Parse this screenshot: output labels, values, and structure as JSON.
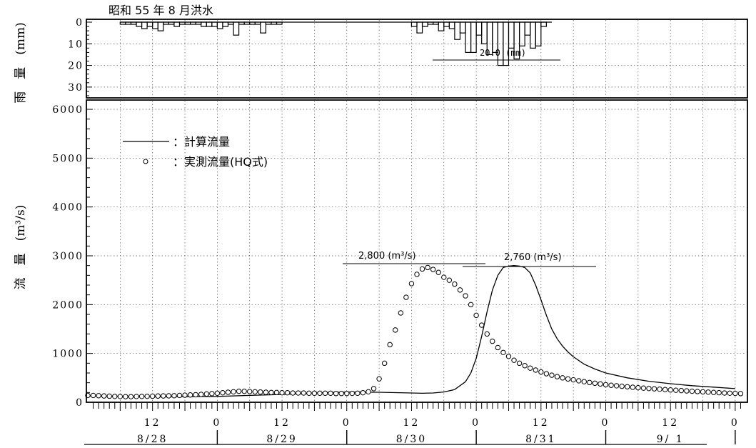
{
  "title": "昭和 55 年 8 月洪水",
  "rain_axis_label": "雨　量　(mm)",
  "flow_axis_label": "流　量　(m³/s)",
  "legend": {
    "computed": "：計算流量",
    "observed": "：実測流量(HQ式)"
  },
  "annotations": {
    "rain_peak": "20.0 (mm)",
    "computed_peak": "2,800 (m³/s)",
    "observed_peak": "2,760 (m³/s)"
  },
  "colors": {
    "ink": "#000000",
    "grid": "#555555",
    "background": "#ffffff"
  },
  "chart_data": {
    "type": "line",
    "title": "昭和 55 年 8 月洪水",
    "x_unit": "hours",
    "x_range_hours": [
      0,
      122
    ],
    "x_hour_ticks": [
      "12",
      "0",
      "12",
      "0",
      "12",
      "0",
      "12",
      "0",
      "12",
      "0"
    ],
    "x_hour_tick_positions_h": [
      12,
      24,
      36,
      48,
      60,
      72,
      84,
      96,
      108,
      120
    ],
    "date_labels": [
      "8/28",
      "8/29",
      "8/30",
      "8/31",
      "9/ 1"
    ],
    "date_label_centers_h": [
      12,
      36,
      60,
      84,
      108
    ],
    "date_separators_h": [
      24,
      48,
      72,
      96,
      120
    ],
    "rainfall": {
      "ylabel": "雨　量　(mm)",
      "ylim": [
        0,
        35
      ],
      "yticks": [
        0,
        10,
        20,
        30
      ],
      "inverted": true,
      "hour_bins": [
        6,
        7,
        8,
        9,
        10,
        11,
        12,
        13,
        14,
        15,
        16,
        17,
        18,
        19,
        20,
        21,
        22,
        23,
        24,
        25,
        26,
        27,
        28,
        29,
        30,
        31,
        32,
        33,
        34,
        35,
        36,
        37,
        38,
        39,
        40,
        41,
        42,
        43,
        44,
        45,
        46,
        47,
        48,
        49,
        50,
        51,
        52,
        53,
        54,
        55,
        56,
        57,
        58,
        59,
        60,
        61,
        62,
        63,
        64,
        65,
        66,
        67,
        68,
        69,
        70,
        71,
        72,
        73,
        74,
        75,
        76,
        77,
        78,
        79,
        80,
        81,
        82,
        83,
        84,
        85,
        86,
        87,
        88,
        89,
        90,
        91,
        92,
        93,
        94,
        95,
        96,
        97,
        98,
        99,
        100,
        101,
        102,
        103,
        104,
        105,
        106,
        107,
        108,
        109,
        110,
        111,
        112,
        113,
        114,
        115,
        116,
        117,
        118,
        119,
        120,
        121
      ],
      "values": [
        1,
        1,
        1,
        2,
        3,
        2,
        3,
        4,
        1,
        1,
        2,
        1,
        1,
        1,
        1,
        2,
        2,
        2,
        3,
        2,
        1,
        6,
        1,
        1,
        1,
        1,
        5,
        1,
        1,
        1,
        1,
        1,
        1,
        1,
        1,
        1,
        1,
        1,
        1,
        1,
        1,
        1,
        1,
        1,
        1,
        1,
        1,
        1,
        0,
        0,
        0,
        0,
        0,
        0,
        0,
        0,
        0,
        0,
        0,
        0,
        0,
        0,
        0,
        0,
        0,
        0,
        0,
        0,
        0,
        0,
        0,
        0,
        0,
        0,
        0,
        0,
        0,
        0,
        0,
        0,
        0,
        0,
        0,
        0,
        0,
        0,
        0,
        0,
        0,
        0,
        0,
        0,
        0,
        0,
        0,
        0,
        0,
        0,
        0,
        0,
        0,
        0,
        0,
        0,
        0,
        0,
        0,
        0,
        0,
        0,
        0,
        0,
        0,
        0,
        0,
        0
      ],
      "storm_bins": [
        47,
        48,
        49,
        50,
        51,
        52,
        53,
        54,
        55,
        56,
        57,
        58,
        59,
        60,
        61,
        62,
        63,
        64,
        65,
        66,
        67,
        68,
        69,
        70,
        71,
        72,
        73,
        74,
        75,
        76,
        77,
        78,
        79,
        80,
        81,
        82,
        83,
        84,
        85
      ],
      "storm_values": [
        0,
        0,
        0,
        0,
        0,
        0,
        0,
        0,
        0,
        0,
        0,
        0,
        0,
        2,
        5,
        2,
        1,
        1,
        4,
        2,
        3,
        8,
        5,
        14,
        14,
        6,
        10,
        15,
        14,
        20,
        20,
        12,
        17,
        11,
        6,
        12,
        11,
        2,
        0
      ]
    },
    "flow": {
      "ylabel": "流　量　(m³/s)",
      "ylim": [
        0,
        6000
      ],
      "yticks": [
        0,
        1000,
        2000,
        3000,
        4000,
        5000,
        6000
      ],
      "series": [
        {
          "name": "計算流量",
          "style": "line",
          "x": [
            0,
            6,
            12,
            18,
            24,
            30,
            36,
            42,
            48,
            54,
            60,
            62,
            64,
            66,
            68,
            70,
            71,
            72,
            73,
            74,
            75,
            76,
            77,
            78,
            79,
            80,
            81,
            82,
            83,
            84,
            85,
            86,
            87,
            88,
            89,
            90,
            92,
            94,
            96,
            100,
            104,
            108,
            112,
            116,
            120
          ],
          "values": [
            130,
            120,
            110,
            115,
            120,
            140,
            160,
            190,
            210,
            205,
            190,
            185,
            190,
            210,
            260,
            420,
            600,
            900,
            1350,
            1850,
            2300,
            2600,
            2760,
            2790,
            2800,
            2790,
            2760,
            2650,
            2400,
            2100,
            1780,
            1500,
            1300,
            1150,
            1030,
            930,
            780,
            680,
            600,
            500,
            430,
            380,
            340,
            310,
            280
          ]
        },
        {
          "name": "実測流量(HQ式)",
          "style": "markers",
          "x": [
            0,
            1,
            2,
            3,
            4,
            5,
            6,
            7,
            8,
            9,
            10,
            11,
            12,
            13,
            14,
            15,
            16,
            17,
            18,
            19,
            20,
            21,
            22,
            23,
            24,
            25,
            26,
            27,
            28,
            29,
            30,
            31,
            32,
            33,
            34,
            35,
            36,
            37,
            38,
            39,
            40,
            41,
            42,
            43,
            44,
            45,
            46,
            47,
            48,
            49,
            50,
            51,
            52,
            53,
            54,
            55,
            56,
            57,
            58,
            59,
            60,
            61,
            62,
            63,
            64,
            65,
            66,
            67,
            68,
            69,
            70,
            71,
            72,
            73,
            74,
            75,
            76,
            77,
            78,
            79,
            80,
            81,
            82,
            83,
            84,
            85,
            86,
            87,
            88,
            89,
            90,
            91,
            92,
            93,
            94,
            95,
            96,
            97,
            98,
            99,
            100,
            101,
            102,
            103,
            104,
            105,
            106,
            107,
            108,
            109,
            110,
            111,
            112,
            113,
            114,
            115,
            116,
            117,
            118,
            119,
            120,
            121
          ],
          "values": [
            140,
            140,
            135,
            130,
            125,
            120,
            118,
            115,
            115,
            118,
            120,
            122,
            125,
            128,
            130,
            132,
            135,
            140,
            145,
            150,
            155,
            162,
            170,
            178,
            185,
            195,
            205,
            215,
            225,
            225,
            220,
            215,
            210,
            205,
            200,
            200,
            195,
            195,
            190,
            190,
            190,
            185,
            185,
            185,
            185,
            185,
            180,
            180,
            180,
            182,
            185,
            195,
            215,
            280,
            480,
            800,
            1180,
            1480,
            1830,
            2150,
            2430,
            2620,
            2730,
            2760,
            2720,
            2660,
            2560,
            2500,
            2420,
            2300,
            2180,
            2000,
            1780,
            1580,
            1400,
            1250,
            1120,
            1020,
            940,
            860,
            800,
            750,
            700,
            660,
            620,
            585,
            555,
            525,
            500,
            478,
            460,
            440,
            422,
            405,
            390,
            375,
            360,
            348,
            338,
            328,
            318,
            308,
            298,
            290,
            283,
            276,
            268,
            260,
            253,
            246,
            240,
            233,
            226,
            220,
            214,
            208,
            202,
            196,
            190,
            186,
            182,
            178
          ]
        }
      ]
    }
  }
}
